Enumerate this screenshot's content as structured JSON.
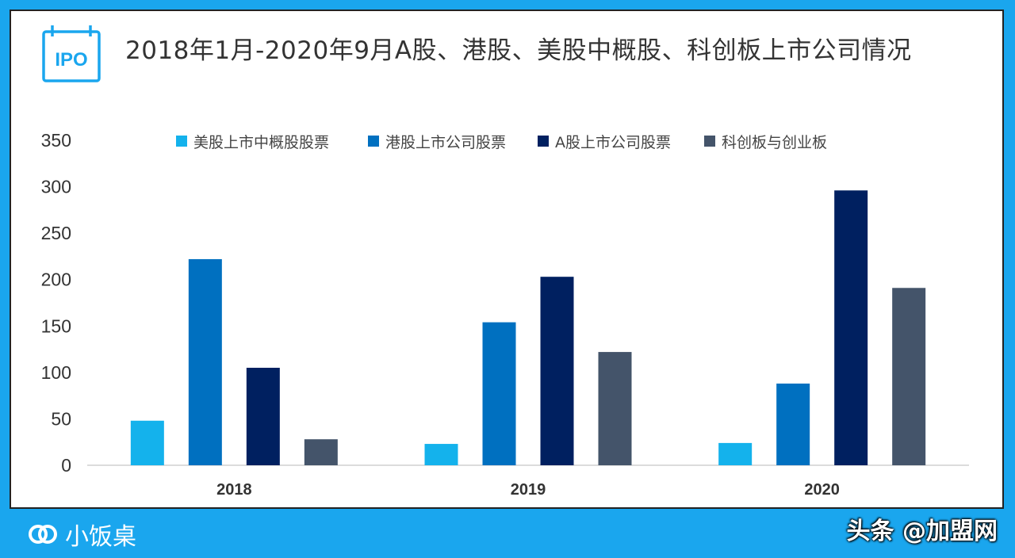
{
  "header": {
    "badge_text": "IPO",
    "title": "2018年1月-2020年9月A股、港股、美股中概股、科创板上市公司情况"
  },
  "footer": {
    "brand": "小饭桌",
    "watermark": "头条 @加盟网"
  },
  "colors": {
    "background": "#1aa6ee",
    "accent": "#1aa6ee"
  },
  "chart_data": {
    "type": "bar",
    "title": "",
    "xlabel": "",
    "ylabel": "",
    "categories": [
      "2018",
      "2019",
      "2020"
    ],
    "ylim": [
      0,
      350
    ],
    "yticks": [
      0,
      50,
      100,
      150,
      200,
      250,
      300,
      350
    ],
    "grid": false,
    "legend": "top",
    "series": [
      {
        "name": "美股上市中概股股票",
        "color": "#14b2ec",
        "values": [
          48,
          23,
          24
        ]
      },
      {
        "name": "港股上市公司股票",
        "color": "#0070c0",
        "values": [
          222,
          154,
          88
        ]
      },
      {
        "name": "A股上市公司股票",
        "color": "#002060",
        "values": [
          105,
          203,
          296
        ]
      },
      {
        "name": "科创板与创业板",
        "color": "#44546a",
        "values": [
          28,
          122,
          191
        ]
      }
    ]
  }
}
